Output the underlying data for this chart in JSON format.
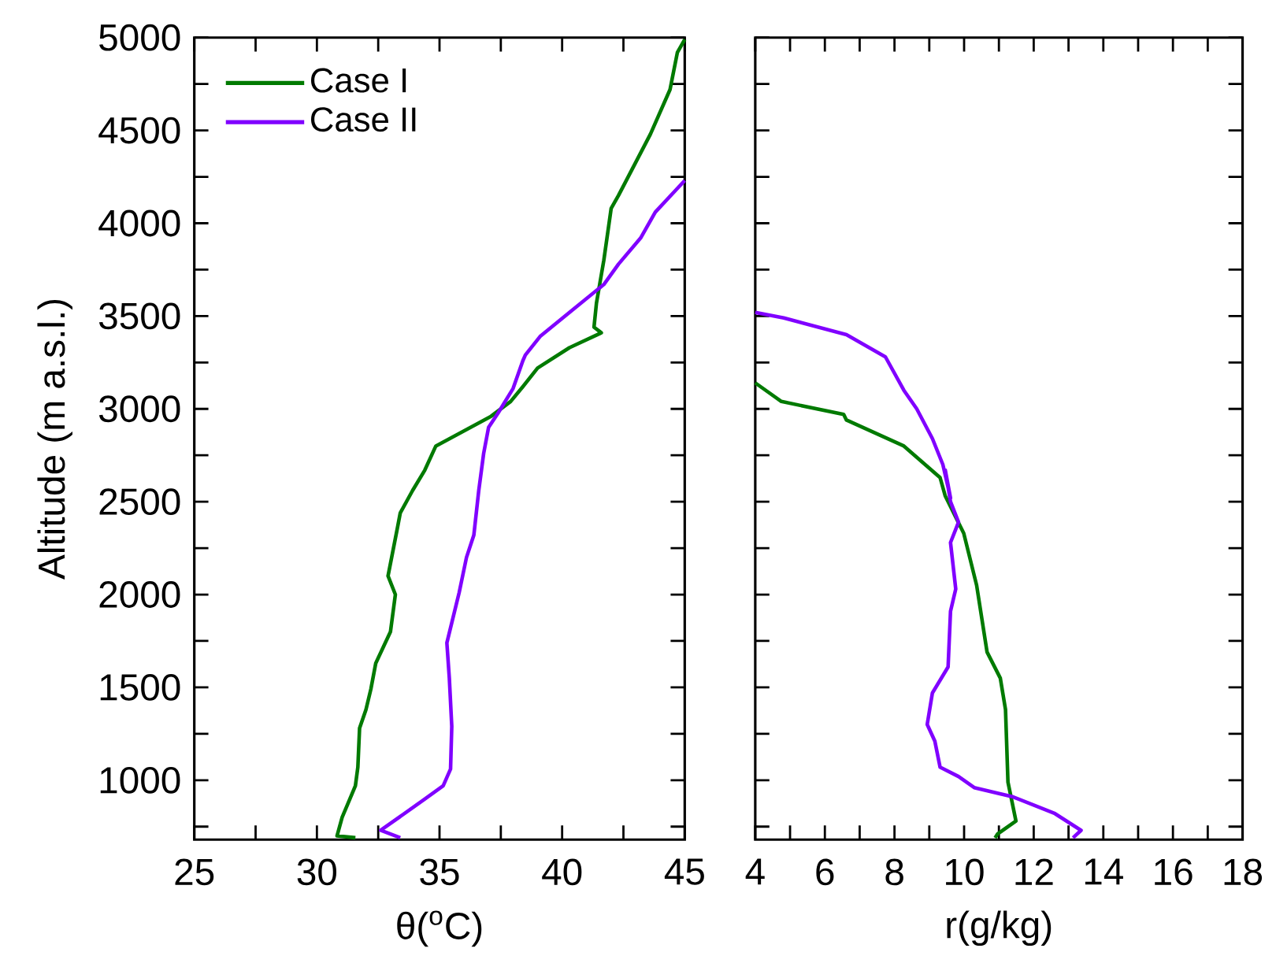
{
  "chart_data": [
    {
      "type": "line",
      "xlabel": "θ($^{o}$C)",
      "ylabel": "Altitude (m a.s.l.)",
      "legend": "top left",
      "xlim": [
        25,
        45
      ],
      "ylim": [
        680,
        5000
      ],
      "xticks": [
        25,
        {
          "value": 27.5,
          "label": null
        },
        30,
        {
          "value": 32.5,
          "label": null
        },
        35,
        {
          "value": 37.5,
          "label": null
        },
        40,
        {
          "value": 42.5,
          "label": null
        },
        45
      ],
      "yticks": [
        {
          "value": 750,
          "label": null
        },
        1000,
        {
          "value": 1250,
          "label": null
        },
        1500,
        {
          "value": 1750,
          "label": null
        },
        2000,
        {
          "value": 2250,
          "label": null
        },
        2500,
        {
          "value": 2750,
          "label": null
        },
        3000,
        {
          "value": 3250,
          "label": null
        },
        3500,
        {
          "value": 3750,
          "label": null
        },
        4000,
        {
          "value": 4250,
          "label": null
        },
        4500,
        {
          "value": 4750,
          "label": null
        },
        5000
      ],
      "series": [
        {
          "name": "Case I",
          "color": "#007a00",
          "x": [
            31.57,
            30.82,
            31.03,
            31.57,
            31.67,
            31.74,
            32.0,
            32.2,
            32.4,
            33.0,
            33.2,
            32.9,
            33.3,
            33.4,
            33.9,
            34.4,
            34.85,
            37.1,
            37.9,
            38.4,
            39.0,
            40.3,
            41.6,
            41.3,
            41.4,
            41.7,
            42.0,
            42.3,
            43.6,
            44.4,
            44.7,
            45.0
          ],
          "values": [
            690,
            700,
            800,
            970,
            1070,
            1280,
            1380,
            1490,
            1630,
            1800,
            2000,
            2100,
            2370,
            2440,
            2560,
            2670,
            2800,
            2960,
            3040,
            3120,
            3220,
            3330,
            3410,
            3440,
            3570,
            3800,
            4080,
            4150,
            4480,
            4720,
            4920,
            4990
          ]
        },
        {
          "name": "Case II",
          "color": "#8000ff",
          "x": [
            33.4,
            32.6,
            34.1,
            35.15,
            35.45,
            35.5,
            35.4,
            35.3,
            35.8,
            36.1,
            36.4,
            36.6,
            36.8,
            37.0,
            37.4,
            38.0,
            38.4,
            38.5,
            39.1,
            40.3,
            41.7,
            42.3,
            43.2,
            43.8,
            45.0
          ],
          "values": [
            690,
            730,
            870,
            970,
            1060,
            1290,
            1550,
            1740,
            2010,
            2200,
            2320,
            2560,
            2760,
            2900,
            2980,
            3110,
            3260,
            3290,
            3390,
            3520,
            3670,
            3780,
            3920,
            4060,
            4230
          ]
        }
      ]
    },
    {
      "type": "line",
      "xlabel": "r(g/kg)",
      "tick_labels": "x",
      "xlim": [
        4,
        18
      ],
      "ylim": [
        680,
        5000
      ],
      "xticks": [
        4,
        {
          "value": 5,
          "label": null
        },
        6,
        {
          "value": 7,
          "label": null
        },
        8,
        {
          "value": 9,
          "label": null
        },
        10,
        {
          "value": 11,
          "label": null
        },
        12,
        {
          "value": 13,
          "label": null
        },
        14,
        {
          "value": 15,
          "label": null
        },
        16,
        {
          "value": 17,
          "label": null
        },
        18
      ],
      "yticks": [
        {
          "value": 750,
          "label": null
        },
        1000,
        {
          "value": 1250,
          "label": null
        },
        1500,
        {
          "value": 1750,
          "label": null
        },
        2000,
        {
          "value": 2250,
          "label": null
        },
        2500,
        {
          "value": 2750,
          "label": null
        },
        3000,
        {
          "value": 3250,
          "label": null
        },
        3500,
        {
          "value": 3750,
          "label": null
        },
        4000,
        {
          "value": 4250,
          "label": null
        },
        4500,
        {
          "value": 4750,
          "label": null
        },
        5000
      ],
      "series": [
        {
          "color": "#007a00",
          "x": [
            4.0,
            4.75,
            6.54,
            6.62,
            8.27,
            9.31,
            9.46,
            9.99,
            10.36,
            10.66,
            11.04,
            11.19,
            11.26,
            11.49,
            10.96,
            10.89
          ],
          "values": [
            3140,
            3040,
            2970,
            2940,
            2800,
            2630,
            2530,
            2330,
            2050,
            1690,
            1550,
            1380,
            990,
            780,
            710,
            690
          ]
        },
        {
          "color": "#8000ff",
          "x": [
            4.0,
            4.82,
            6.62,
            7.74,
            8.27,
            8.64,
            9.09,
            9.39,
            9.61,
            9.46,
            9.61,
            9.84,
            9.61,
            9.76,
            9.61,
            9.54,
            9.09,
            8.94,
            9.16,
            9.31,
            9.84,
            10.29,
            11.41,
            12.61,
            13.36,
            13.13
          ],
          "values": [
            3520,
            3490,
            3400,
            3280,
            3100,
            3000,
            2840,
            2700,
            2520,
            2670,
            2500,
            2390,
            2280,
            2030,
            1910,
            1610,
            1470,
            1300,
            1210,
            1070,
            1020,
            960,
            910,
            820,
            730,
            690
          ]
        }
      ]
    }
  ]
}
